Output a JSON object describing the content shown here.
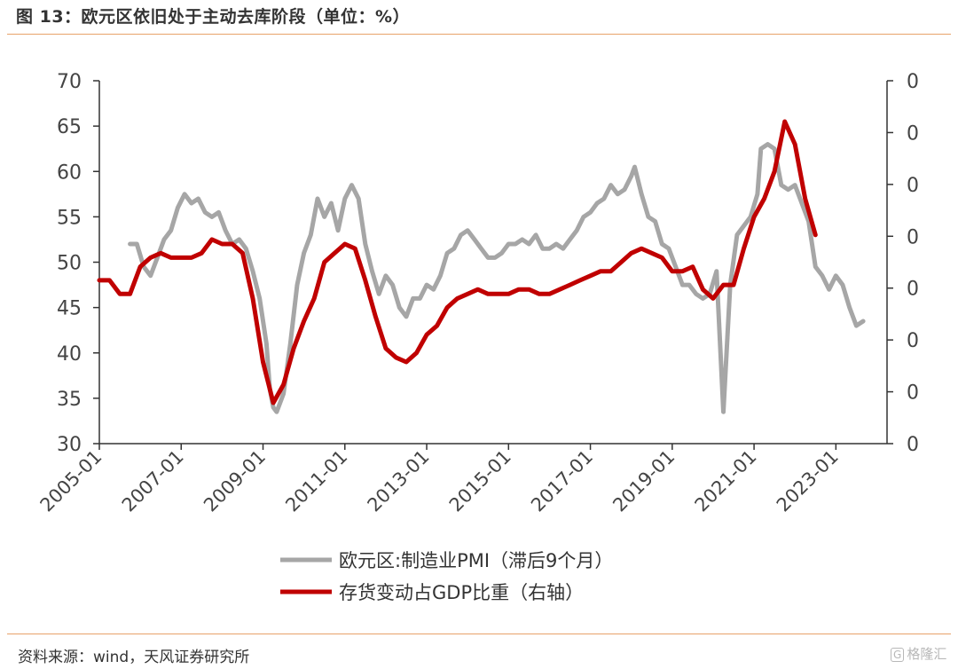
{
  "header": {
    "title": "图 13：欧元区依旧处于主动去库阶段（单位：%）"
  },
  "footer": {
    "source": "资料来源：wind，天风证券研究所",
    "watermark_box": "G",
    "watermark_text": "格隆汇"
  },
  "colors": {
    "pmi": "#a6a6a6",
    "inventory": "#c00000",
    "accent": "#e8a26a"
  },
  "chart_data": {
    "type": "line",
    "title": "",
    "x_ticks": [
      "2005-01",
      "2007-01",
      "2009-01",
      "2011-01",
      "2013-01",
      "2015-01",
      "2017-01",
      "2019-01",
      "2021-01",
      "2023-01"
    ],
    "x_range": [
      "2005-01",
      "2024-04"
    ],
    "y_left": {
      "range": [
        30,
        70
      ],
      "ticks": [
        "70",
        "65",
        "60",
        "55",
        "50",
        "45",
        "40",
        "35",
        "30"
      ]
    },
    "y_right": {
      "ticks": [
        "0",
        "0",
        "0",
        "0",
        "0",
        "0",
        "0",
        "0"
      ]
    },
    "legend": {
      "placement": "bottom-center"
    },
    "series": [
      {
        "name": "欧元区:制造业PMI（滞后9个月）",
        "color": "#a6a6a6",
        "axis": "left",
        "points": [
          [
            "2005-10",
            52.0
          ],
          [
            "2005-12",
            52.0
          ],
          [
            "2006-02",
            49.5
          ],
          [
            "2006-04",
            48.5
          ],
          [
            "2006-06",
            50.5
          ],
          [
            "2006-08",
            52.5
          ],
          [
            "2006-10",
            53.5
          ],
          [
            "2006-12",
            56.0
          ],
          [
            "2007-02",
            57.5
          ],
          [
            "2007-04",
            56.5
          ],
          [
            "2007-06",
            57.0
          ],
          [
            "2007-08",
            55.5
          ],
          [
            "2007-10",
            55.0
          ],
          [
            "2007-12",
            55.5
          ],
          [
            "2008-02",
            53.5
          ],
          [
            "2008-04",
            52.0
          ],
          [
            "2008-06",
            52.5
          ],
          [
            "2008-08",
            51.5
          ],
          [
            "2008-10",
            49.0
          ],
          [
            "2008-12",
            46.0
          ],
          [
            "2009-02",
            41.0
          ],
          [
            "2009-03",
            36.0
          ],
          [
            "2009-04",
            34.0
          ],
          [
            "2009-05",
            33.5
          ],
          [
            "2009-07",
            35.5
          ],
          [
            "2009-09",
            41.0
          ],
          [
            "2009-11",
            47.5
          ],
          [
            "2010-01",
            51.0
          ],
          [
            "2010-03",
            53.0
          ],
          [
            "2010-05",
            57.0
          ],
          [
            "2010-07",
            55.0
          ],
          [
            "2010-09",
            56.5
          ],
          [
            "2010-11",
            53.5
          ],
          [
            "2011-01",
            57.0
          ],
          [
            "2011-03",
            58.5
          ],
          [
            "2011-05",
            57.0
          ],
          [
            "2011-07",
            52.0
          ],
          [
            "2011-09",
            49.0
          ],
          [
            "2011-11",
            46.5
          ],
          [
            "2012-01",
            48.5
          ],
          [
            "2012-03",
            47.5
          ],
          [
            "2012-05",
            45.0
          ],
          [
            "2012-07",
            44.0
          ],
          [
            "2012-09",
            46.0
          ],
          [
            "2012-11",
            46.0
          ],
          [
            "2013-01",
            47.5
          ],
          [
            "2013-03",
            47.0
          ],
          [
            "2013-05",
            48.5
          ],
          [
            "2013-07",
            51.0
          ],
          [
            "2013-09",
            51.5
          ],
          [
            "2013-11",
            53.0
          ],
          [
            "2014-01",
            53.5
          ],
          [
            "2014-03",
            52.5
          ],
          [
            "2014-05",
            51.5
          ],
          [
            "2014-07",
            50.5
          ],
          [
            "2014-09",
            50.5
          ],
          [
            "2014-11",
            51.0
          ],
          [
            "2015-01",
            52.0
          ],
          [
            "2015-03",
            52.0
          ],
          [
            "2015-05",
            52.5
          ],
          [
            "2015-07",
            52.0
          ],
          [
            "2015-09",
            53.0
          ],
          [
            "2015-11",
            51.5
          ],
          [
            "2016-01",
            51.5
          ],
          [
            "2016-03",
            52.0
          ],
          [
            "2016-05",
            51.5
          ],
          [
            "2016-07",
            52.5
          ],
          [
            "2016-09",
            53.5
          ],
          [
            "2016-11",
            55.0
          ],
          [
            "2017-01",
            55.5
          ],
          [
            "2017-03",
            56.5
          ],
          [
            "2017-05",
            57.0
          ],
          [
            "2017-07",
            58.5
          ],
          [
            "2017-09",
            57.5
          ],
          [
            "2017-11",
            58.0
          ],
          [
            "2018-01",
            59.5
          ],
          [
            "2018-02",
            60.5
          ],
          [
            "2018-04",
            57.5
          ],
          [
            "2018-06",
            55.0
          ],
          [
            "2018-08",
            54.5
          ],
          [
            "2018-10",
            52.0
          ],
          [
            "2018-12",
            51.5
          ],
          [
            "2019-02",
            49.5
          ],
          [
            "2019-04",
            47.5
          ],
          [
            "2019-06",
            47.5
          ],
          [
            "2019-08",
            46.5
          ],
          [
            "2019-10",
            46.0
          ],
          [
            "2019-12",
            46.5
          ],
          [
            "2020-02",
            49.0
          ],
          [
            "2020-04",
            33.5
          ],
          [
            "2020-06",
            47.5
          ],
          [
            "2020-08",
            53.0
          ],
          [
            "2020-10",
            54.0
          ],
          [
            "2020-12",
            55.0
          ],
          [
            "2021-02",
            57.5
          ],
          [
            "2021-03",
            62.5
          ],
          [
            "2021-05",
            63.0
          ],
          [
            "2021-07",
            62.5
          ],
          [
            "2021-09",
            58.5
          ],
          [
            "2021-11",
            58.0
          ],
          [
            "2022-01",
            58.5
          ],
          [
            "2022-03",
            56.5
          ],
          [
            "2022-05",
            54.5
          ],
          [
            "2022-07",
            49.5
          ],
          [
            "2022-09",
            48.5
          ],
          [
            "2022-11",
            47.0
          ],
          [
            "2023-01",
            48.5
          ],
          [
            "2023-03",
            47.5
          ],
          [
            "2023-05",
            45.0
          ],
          [
            "2023-07",
            43.0
          ],
          [
            "2023-09",
            43.5
          ]
        ]
      },
      {
        "name": "存货变动占GDP比重（右轴）",
        "color": "#c00000",
        "axis": "right",
        "points": [
          [
            "2005-01",
            48.0
          ],
          [
            "2005-04",
            48.0
          ],
          [
            "2005-07",
            46.5
          ],
          [
            "2005-10",
            46.5
          ],
          [
            "2006-01",
            49.5
          ],
          [
            "2006-04",
            50.5
          ],
          [
            "2006-07",
            51.0
          ],
          [
            "2006-10",
            50.5
          ],
          [
            "2007-01",
            50.5
          ],
          [
            "2007-04",
            50.5
          ],
          [
            "2007-07",
            51.0
          ],
          [
            "2007-10",
            52.5
          ],
          [
            "2008-01",
            52.0
          ],
          [
            "2008-04",
            52.0
          ],
          [
            "2008-07",
            51.0
          ],
          [
            "2008-10",
            46.0
          ],
          [
            "2009-01",
            39.0
          ],
          [
            "2009-04",
            34.5
          ],
          [
            "2009-07",
            36.5
          ],
          [
            "2009-10",
            40.5
          ],
          [
            "2010-01",
            43.5
          ],
          [
            "2010-04",
            46.0
          ],
          [
            "2010-07",
            50.0
          ],
          [
            "2010-10",
            51.0
          ],
          [
            "2011-01",
            52.0
          ],
          [
            "2011-04",
            51.5
          ],
          [
            "2011-07",
            48.0
          ],
          [
            "2011-10",
            44.0
          ],
          [
            "2012-01",
            40.5
          ],
          [
            "2012-04",
            39.5
          ],
          [
            "2012-07",
            39.0
          ],
          [
            "2012-10",
            40.0
          ],
          [
            "2013-01",
            42.0
          ],
          [
            "2013-04",
            43.0
          ],
          [
            "2013-07",
            45.0
          ],
          [
            "2013-10",
            46.0
          ],
          [
            "2014-01",
            46.5
          ],
          [
            "2014-04",
            47.0
          ],
          [
            "2014-07",
            46.5
          ],
          [
            "2014-10",
            46.5
          ],
          [
            "2015-01",
            46.5
          ],
          [
            "2015-04",
            47.0
          ],
          [
            "2015-07",
            47.0
          ],
          [
            "2015-10",
            46.5
          ],
          [
            "2016-01",
            46.5
          ],
          [
            "2016-04",
            47.0
          ],
          [
            "2016-07",
            47.5
          ],
          [
            "2016-10",
            48.0
          ],
          [
            "2017-01",
            48.5
          ],
          [
            "2017-04",
            49.0
          ],
          [
            "2017-07",
            49.0
          ],
          [
            "2017-10",
            50.0
          ],
          [
            "2018-01",
            51.0
          ],
          [
            "2018-04",
            51.5
          ],
          [
            "2018-07",
            51.0
          ],
          [
            "2018-10",
            50.5
          ],
          [
            "2019-01",
            49.0
          ],
          [
            "2019-04",
            49.0
          ],
          [
            "2019-07",
            49.5
          ],
          [
            "2019-10",
            47.0
          ],
          [
            "2020-01",
            46.0
          ],
          [
            "2020-04",
            47.5
          ],
          [
            "2020-07",
            47.5
          ],
          [
            "2020-10",
            51.5
          ],
          [
            "2021-01",
            55.0
          ],
          [
            "2021-04",
            57.0
          ],
          [
            "2021-07",
            60.0
          ],
          [
            "2021-10",
            65.5
          ],
          [
            "2022-01",
            63.0
          ],
          [
            "2022-04",
            57.0
          ],
          [
            "2022-07",
            53.0
          ]
        ]
      }
    ]
  }
}
